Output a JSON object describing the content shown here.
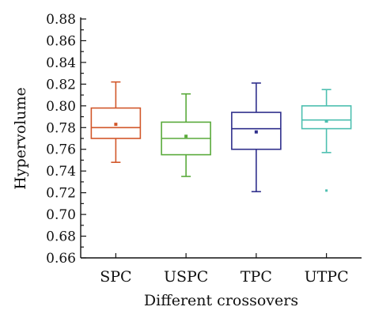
{
  "chart_data": {
    "type": "box",
    "xlabel": "Different crossovers",
    "ylabel": "Hypervolume",
    "ylim": [
      0.66,
      0.88
    ],
    "yticks": [
      "0.66",
      "0.68",
      "0.70",
      "0.72",
      "0.74",
      "0.76",
      "0.78",
      "0.80",
      "0.82",
      "0.84",
      "0.86",
      "0.88"
    ],
    "minor_ticks": true,
    "grid": false,
    "categories": [
      "SPC",
      "USPC",
      "TPC",
      "UTPC"
    ],
    "series": [
      {
        "category": "SPC",
        "color": "#d2572a",
        "whisker_low": 0.748,
        "q1": 0.77,
        "median": 0.78,
        "q3": 0.798,
        "whisker_high": 0.822,
        "mean": 0.783,
        "outliers": []
      },
      {
        "category": "USPC",
        "color": "#5aaa3c",
        "whisker_low": 0.735,
        "q1": 0.755,
        "median": 0.77,
        "q3": 0.785,
        "whisker_high": 0.811,
        "mean": 0.772,
        "outliers": []
      },
      {
        "category": "TPC",
        "color": "#2f2f8c",
        "whisker_low": 0.721,
        "q1": 0.76,
        "median": 0.779,
        "q3": 0.794,
        "whisker_high": 0.821,
        "mean": 0.776,
        "outliers": []
      },
      {
        "category": "UTPC",
        "color": "#4dbfb0",
        "whisker_low": 0.757,
        "q1": 0.779,
        "median": 0.787,
        "q3": 0.8,
        "whisker_high": 0.815,
        "mean": 0.786,
        "outliers": [
          0.722
        ]
      }
    ]
  }
}
